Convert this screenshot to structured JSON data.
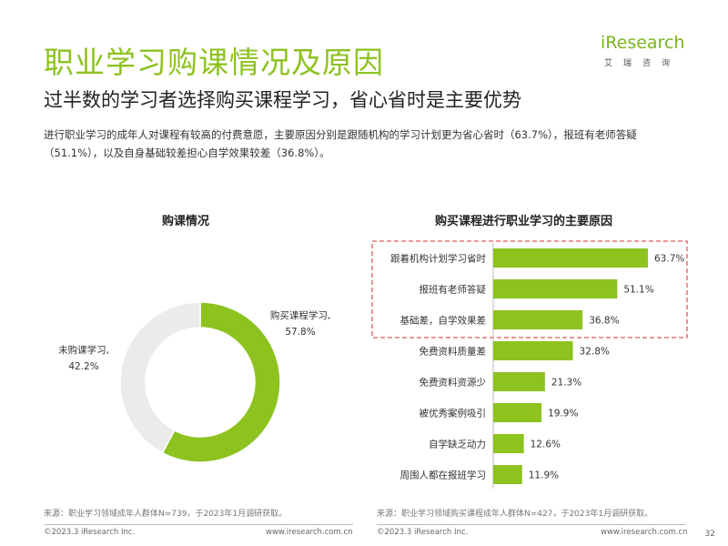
{
  "header": {
    "title": "职业学习购课情况及原因",
    "subtitle": "过半数的学习者选择购买课程学习，省心省时是主要优势",
    "description": "进行职业学习的成年人对课程有较高的付费意愿，主要原因分别是跟随机构的学习计划更为省心省时（63.7%），报班有老师答疑（51.1%），以及自身基础较差担心自学效果较差（36.8%）。"
  },
  "logo": {
    "text": "iResearch",
    "sub": "艾瑞咨询"
  },
  "colors": {
    "accent": "#8dc21f",
    "grey": "#ebebeb",
    "highlight": "#e05a5a"
  },
  "chart_data": [
    {
      "type": "pie",
      "title": "购课情况",
      "categories": [
        "购买课程学习",
        "未购课学习"
      ],
      "values": [
        57.8,
        42.2
      ],
      "labels": [
        "购买课程学习,\n57.8%",
        "未购课学习,\n42.2%"
      ],
      "colors": [
        "#8dc21f",
        "#ebebeb"
      ]
    },
    {
      "type": "bar",
      "orientation": "horizontal",
      "title": "购买课程进行职业学习的主要原因",
      "categories": [
        "跟着机构计划学习省时",
        "报班有老师答疑",
        "基础差，自学效果差",
        "免费资料质量差",
        "免费资料资源少",
        "被优秀案例吸引",
        "自学缺乏动力",
        "周围人都在报班学习"
      ],
      "values": [
        63.7,
        51.1,
        36.8,
        32.8,
        21.3,
        19.9,
        12.6,
        11.9
      ],
      "value_labels": [
        "63.7%",
        "51.1%",
        "36.8%",
        "32.8%",
        "21.3%",
        "19.9%",
        "12.6%",
        "11.9%"
      ],
      "highlighted": [
        "跟着机构计划学习省时",
        "报班有老师答疑",
        "基础差，自学效果差"
      ]
    }
  ],
  "sources": {
    "left": "来源：职业学习领域成年人群体N=739，于2023年1月调研获取。",
    "right": "来源：职业学习领域购买课程成年人群体N=427，于2023年1月调研获取。"
  },
  "footer": {
    "copyright_left": "©2023.3 iResearch Inc.",
    "url_left": "www.iresearch.com.cn",
    "copyright_right": "©2023.3 iResearch Inc.",
    "url_right": "www.iresearch.com.cn",
    "page": "32"
  }
}
